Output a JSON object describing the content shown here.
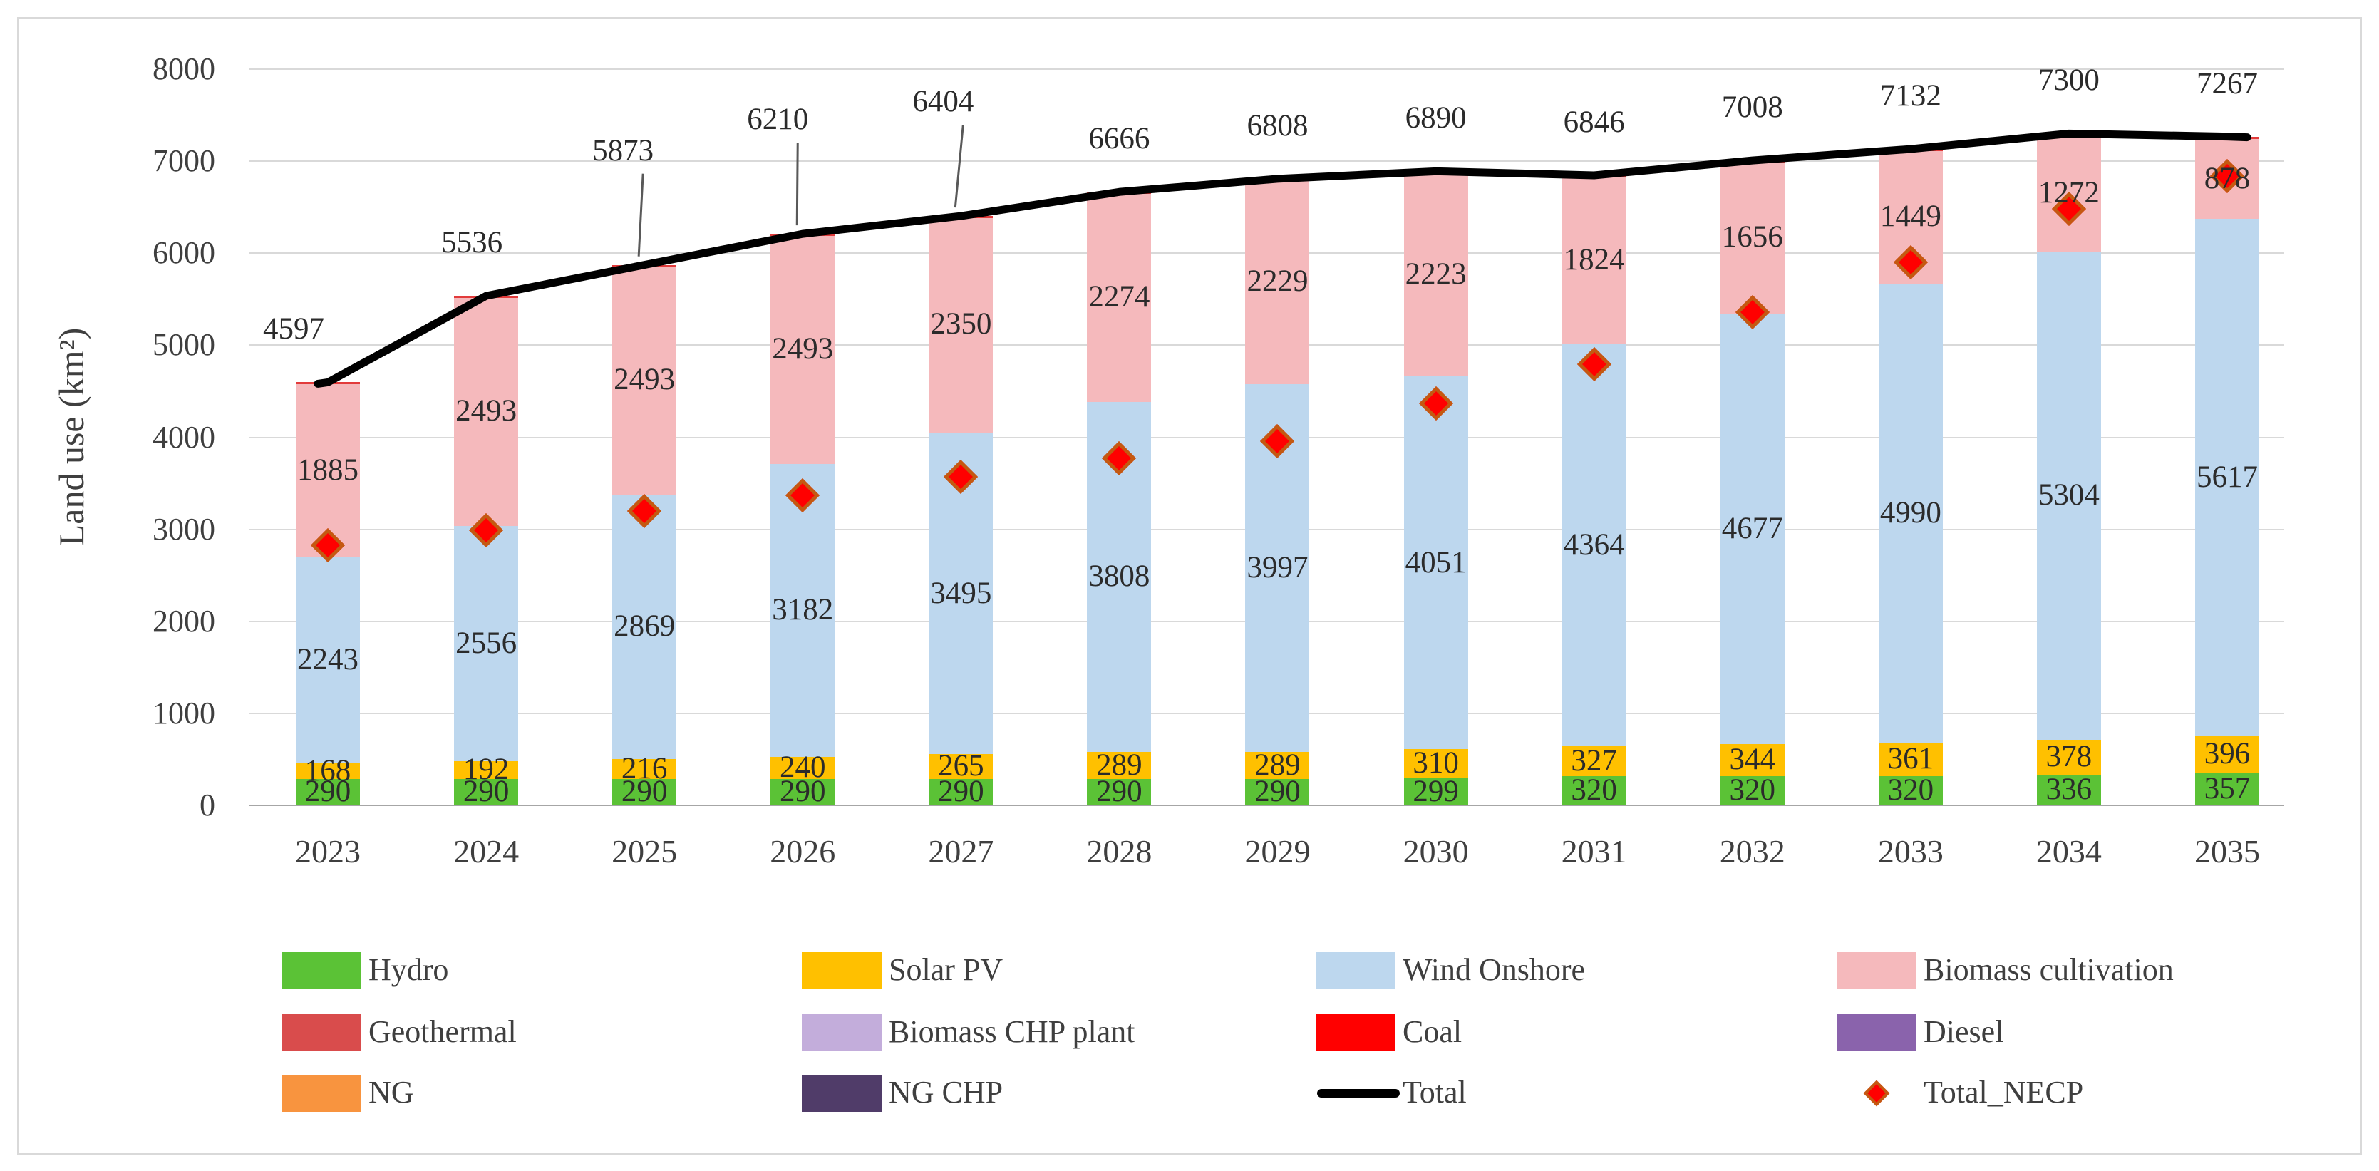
{
  "figure": {
    "border_color": "#D9D9D9",
    "background": "#FFFFFF"
  },
  "chart_data": {
    "type": "bar",
    "stacked": true,
    "title": "",
    "xlabel": "",
    "ylabel": "Land use (km²)",
    "ylim": [
      0,
      8000
    ],
    "ytick_step": 1000,
    "yticks": [
      "0",
      "1000",
      "2000",
      "3000",
      "4000",
      "5000",
      "6000",
      "7000",
      "8000"
    ],
    "grid": "horizontal",
    "legend_position": "bottom",
    "categories": [
      "2023",
      "2024",
      "2025",
      "2026",
      "2027",
      "2028",
      "2029",
      "2030",
      "2031",
      "2032",
      "2033",
      "2034",
      "2035"
    ],
    "series": [
      {
        "name": "Hydro",
        "color": "#5BC236",
        "values": [
          290,
          290,
          290,
          290,
          290,
          290,
          290,
          299,
          320,
          320,
          320,
          336,
          357
        ]
      },
      {
        "name": "Solar PV",
        "color": "#FFC000",
        "values": [
          168,
          192,
          216,
          240,
          265,
          289,
          289,
          310,
          327,
          344,
          361,
          378,
          396
        ]
      },
      {
        "name": "Wind Onshore",
        "color": "#BDD7EE",
        "values": [
          2243,
          2556,
          2869,
          3182,
          3495,
          3808,
          3997,
          4051,
          4364,
          4677,
          4990,
          5304,
          5617
        ]
      },
      {
        "name": "Biomass cultivation",
        "color": "#F5B9BC",
        "values": [
          1885,
          2493,
          2493,
          2493,
          2350,
          2274,
          2229,
          2223,
          1824,
          1656,
          1449,
          1272,
          878
        ]
      }
    ],
    "minor_series_cap": {
      "note": "thin unlabeled sliver at top of each stack (Geothermal, Biomass CHP plant, Coal, Diesel, NG, NG CHP)",
      "color": "#E23B3B",
      "values_are_total_minus_labeled_series": true
    },
    "line_series": {
      "name": "Total",
      "color": "#000000",
      "values": [
        4597,
        5536,
        5873,
        6210,
        6404,
        6666,
        6808,
        6890,
        6846,
        7008,
        7132,
        7300,
        7267
      ]
    },
    "scatter_series": {
      "name": "Total_NECP",
      "marker": "diamond",
      "fill": "#FF0000",
      "border": "#C45911",
      "estimated": true,
      "values": [
        2830,
        2990,
        3200,
        3370,
        3570,
        3770,
        3960,
        4370,
        4790,
        5360,
        5900,
        6480,
        6840
      ]
    },
    "legend": [
      {
        "label": "Hydro",
        "swatch": "rect",
        "color": "#5BC236"
      },
      {
        "label": "Solar PV",
        "swatch": "rect",
        "color": "#FFC000"
      },
      {
        "label": "Wind Onshore",
        "swatch": "rect",
        "color": "#BDD7EE"
      },
      {
        "label": "Biomass cultivation",
        "swatch": "rect",
        "color": "#F5B9BC"
      },
      {
        "label": "Geothermal",
        "swatch": "rect",
        "color": "#D94C4C"
      },
      {
        "label": "Biomass CHP plant",
        "swatch": "rect",
        "color": "#C3ADDB"
      },
      {
        "label": "Coal",
        "swatch": "rect",
        "color": "#FF0000"
      },
      {
        "label": "Diesel",
        "swatch": "rect",
        "color": "#8A63AC"
      },
      {
        "label": "NG",
        "swatch": "rect",
        "color": "#F8943F"
      },
      {
        "label": "NG CHP",
        "swatch": "rect",
        "color": "#503C69"
      },
      {
        "label": "Total",
        "swatch": "line",
        "color": "#000000"
      },
      {
        "label": "Total_NECP",
        "swatch": "diamond",
        "color": "#FF0000",
        "border": "#C45911"
      }
    ]
  }
}
